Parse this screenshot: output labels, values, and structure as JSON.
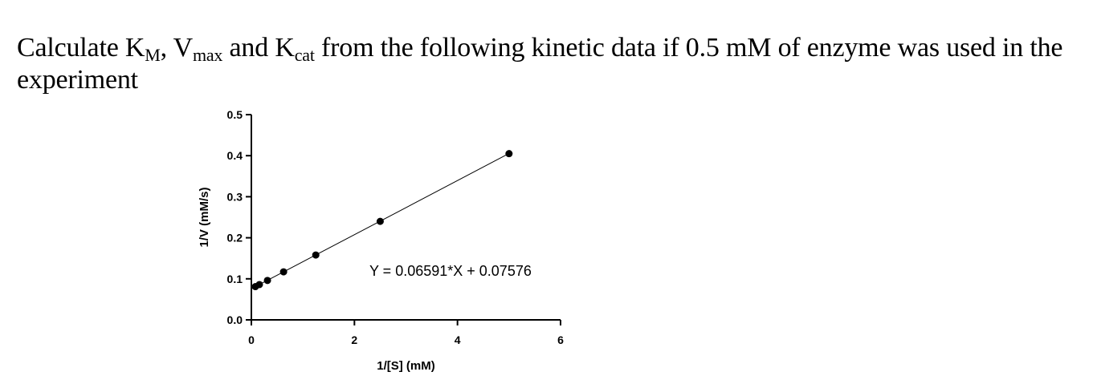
{
  "question": {
    "text_before_km": "Calculate K",
    "km_sub": "M",
    "text_before_vmax": ", V",
    "vmax_sub": "max",
    "text_before_kcat": " and K",
    "kcat_sub": "cat",
    "text_after": " from the following kinetic data if 0.5 mM of enzyme was used in the experiment"
  },
  "chart_data": {
    "type": "scatter",
    "xlabel": "1/[S] (mM)",
    "ylabel": "1/V (mM/s)",
    "xlim": [
      0,
      6
    ],
    "ylim": [
      0,
      0.5
    ],
    "xticks": [
      0,
      2,
      4,
      6
    ],
    "yticks": [
      0.0,
      0.1,
      0.2,
      0.3,
      0.4,
      0.5
    ],
    "xtick_labels": [
      "0",
      "2",
      "4",
      "6"
    ],
    "ytick_labels": [
      "0.0",
      "0.1",
      "0.2",
      "0.3",
      "0.4",
      "0.5"
    ],
    "points": {
      "x": [
        0.078,
        0.156,
        0.3125,
        0.625,
        1.25,
        2.5,
        5.0
      ],
      "y": [
        0.081,
        0.086,
        0.096,
        0.117,
        0.158,
        0.24,
        0.405
      ]
    },
    "fit_line": {
      "slope": 0.06591,
      "intercept": 0.07576,
      "x_range": [
        0,
        5
      ]
    },
    "equation": "Y = 0.06591*X + 0.07576",
    "grid": false,
    "marker_color": "#000000",
    "line_color": "#000000"
  }
}
